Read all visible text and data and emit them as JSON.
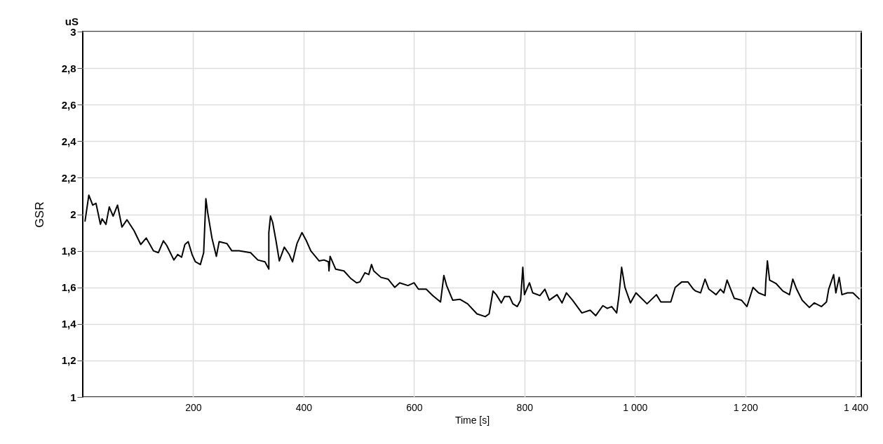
{
  "chart_data": {
    "type": "line",
    "xlabel": "Time [s]",
    "ylabel": "GSR",
    "annotations": [
      "uS"
    ],
    "x": [
      4,
      11,
      18,
      24,
      32,
      35,
      42,
      48,
      55,
      63,
      71,
      80,
      93,
      105,
      115,
      128,
      137,
      146,
      152,
      165,
      172,
      179,
      185,
      191,
      198,
      204,
      213,
      219,
      223,
      226,
      234,
      242,
      247,
      261,
      270,
      283,
      304,
      317,
      330,
      337,
      337,
      340,
      344,
      350,
      356,
      365,
      374,
      380,
      388,
      397,
      405,
      413,
      428,
      437,
      445,
      446,
      448,
      458,
      473,
      485,
      496,
      502,
      511,
      518,
      523,
      527,
      540,
      553,
      565,
      574,
      589,
      600,
      608,
      622,
      634,
      648,
      654,
      659,
      670,
      683,
      697,
      714,
      729,
      736,
      743,
      749,
      758,
      764,
      773,
      779,
      787,
      793,
      797,
      800,
      809,
      815,
      828,
      837,
      845,
      859,
      868,
      876,
      887,
      904,
      919,
      929,
      942,
      950,
      958,
      967,
      971,
      976,
      982,
      992,
      1002,
      1022,
      1039,
      1047,
      1065,
      1073,
      1085,
      1096,
      1106,
      1110,
      1119,
      1127,
      1134,
      1147,
      1155,
      1161,
      1167,
      1180,
      1193,
      1203,
      1214,
      1224,
      1236,
      1237,
      1240,
      1244,
      1256,
      1268,
      1280,
      1286,
      1293,
      1303,
      1316,
      1325,
      1338,
      1347,
      1351,
      1360,
      1364,
      1370,
      1375,
      1385,
      1395,
      1407
    ],
    "series": [
      {
        "color": "#000000",
        "values": [
          1.96,
          2.105,
          2.05,
          2.06,
          1.945,
          1.975,
          1.945,
          2.04,
          1.99,
          2.05,
          1.93,
          1.97,
          1.91,
          1.835,
          1.87,
          1.8,
          1.79,
          1.855,
          1.83,
          1.75,
          1.78,
          1.765,
          1.835,
          1.85,
          1.78,
          1.74,
          1.725,
          1.79,
          2.085,
          2.015,
          1.87,
          1.77,
          1.85,
          1.84,
          1.8,
          1.8,
          1.79,
          1.75,
          1.74,
          1.7,
          1.9,
          1.99,
          1.955,
          1.855,
          1.745,
          1.82,
          1.78,
          1.74,
          1.84,
          1.9,
          1.855,
          1.8,
          1.745,
          1.75,
          1.74,
          1.69,
          1.77,
          1.7,
          1.69,
          1.65,
          1.625,
          1.63,
          1.68,
          1.67,
          1.725,
          1.69,
          1.655,
          1.645,
          1.6,
          1.625,
          1.61,
          1.625,
          1.59,
          1.59,
          1.555,
          1.52,
          1.665,
          1.61,
          1.53,
          1.535,
          1.51,
          1.455,
          1.44,
          1.455,
          1.58,
          1.56,
          1.515,
          1.55,
          1.55,
          1.51,
          1.495,
          1.53,
          1.71,
          1.56,
          1.625,
          1.57,
          1.555,
          1.59,
          1.53,
          1.56,
          1.515,
          1.57,
          1.53,
          1.46,
          1.475,
          1.445,
          1.5,
          1.485,
          1.495,
          1.46,
          1.55,
          1.71,
          1.6,
          1.515,
          1.57,
          1.51,
          1.56,
          1.52,
          1.52,
          1.6,
          1.63,
          1.63,
          1.59,
          1.58,
          1.57,
          1.645,
          1.59,
          1.56,
          1.59,
          1.57,
          1.64,
          1.54,
          1.53,
          1.495,
          1.6,
          1.57,
          1.555,
          1.625,
          1.745,
          1.64,
          1.62,
          1.58,
          1.56,
          1.645,
          1.59,
          1.53,
          1.49,
          1.515,
          1.495,
          1.52,
          1.59,
          1.67,
          1.57,
          1.655,
          1.56,
          1.57,
          1.57,
          1.535
        ]
      }
    ],
    "xlim": [
      0,
      1410
    ],
    "ylim": [
      1,
      3
    ],
    "xticks": [
      200,
      400,
      600,
      800,
      {
        "value": 1000,
        "label": "1 000"
      },
      {
        "value": 1200,
        "label": "1 200"
      },
      {
        "value": 1400,
        "label": "1 400"
      }
    ],
    "yticks": [
      1,
      {
        "value": 1.2,
        "label": "1,2"
      },
      {
        "value": 1.4,
        "label": "1,4"
      },
      {
        "value": 1.6,
        "label": "1,6"
      },
      {
        "value": 1.8,
        "label": "1,8"
      },
      2,
      {
        "value": 2.2,
        "label": "2,2"
      },
      {
        "value": 2.4,
        "label": "2,4"
      },
      {
        "value": 2.6,
        "label": "2,6"
      },
      {
        "value": 2.8,
        "label": "2,8"
      },
      3
    ],
    "grid": true,
    "legend": false,
    "marker": "none",
    "line_style": "solid"
  }
}
